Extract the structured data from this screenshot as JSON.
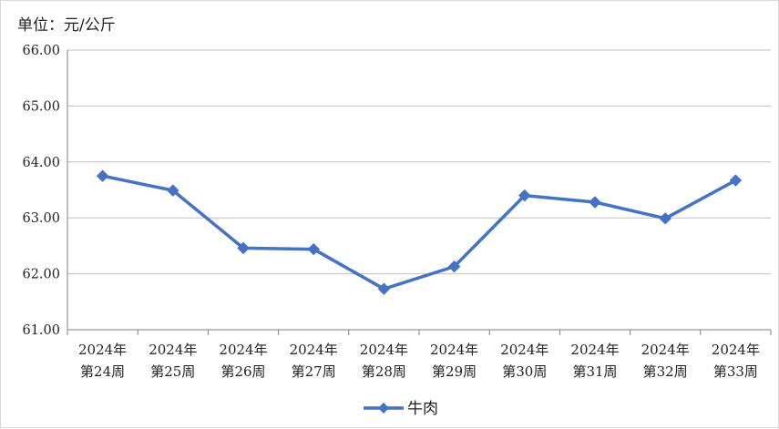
{
  "chart_data": {
    "type": "line",
    "unit_label": "单位：元/公斤",
    "categories": [
      [
        "2024年",
        "第24周"
      ],
      [
        "2024年",
        "第25周"
      ],
      [
        "2024年",
        "第26周"
      ],
      [
        "2024年",
        "第27周"
      ],
      [
        "2024年",
        "第28周"
      ],
      [
        "2024年",
        "第29周"
      ],
      [
        "2024年",
        "第30周"
      ],
      [
        "2024年",
        "第31周"
      ],
      [
        "2024年",
        "第32周"
      ],
      [
        "2024年",
        "第33周"
      ]
    ],
    "series": [
      {
        "name": "牛肉",
        "color": "#4472C4",
        "marker": "diamond",
        "values": [
          63.75,
          63.49,
          62.46,
          62.44,
          61.73,
          62.13,
          63.4,
          63.28,
          62.99,
          63.67
        ]
      }
    ],
    "ylim": [
      61.0,
      66.0
    ],
    "yticks": [
      "61.00",
      "62.00",
      "63.00",
      "64.00",
      "65.00",
      "66.00"
    ],
    "grid": true,
    "legend_position": "bottom"
  }
}
